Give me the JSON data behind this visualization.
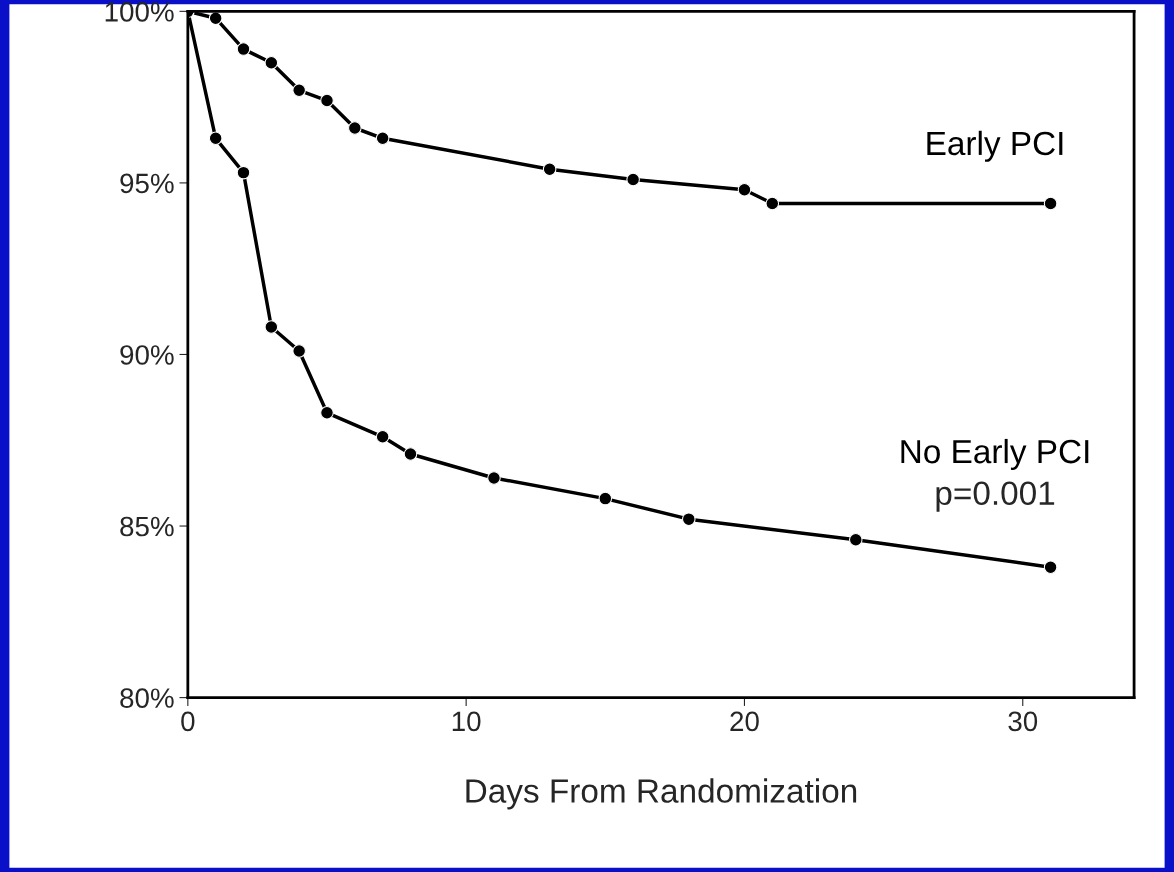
{
  "chart_data": {
    "type": "line",
    "xlabel": "Days From Randomization",
    "series": [
      {
        "name": "Early PCI",
        "color": "#000000",
        "x": [
          0,
          1,
          2,
          3,
          4,
          5,
          6,
          7,
          13,
          16,
          20,
          21,
          31
        ],
        "values": [
          100,
          99.8,
          98.9,
          98.5,
          97.7,
          97.4,
          96.6,
          96.3,
          95.4,
          95.1,
          94.8,
          94.4,
          94.4
        ]
      },
      {
        "name": "No Early PCI",
        "color": "#000000",
        "x": [
          0,
          1,
          2,
          3,
          4,
          5,
          7,
          8,
          11,
          15,
          18,
          24,
          31
        ],
        "values": [
          100,
          96.3,
          95.3,
          90.8,
          90.1,
          88.3,
          87.6,
          87.1,
          86.4,
          85.8,
          85.2,
          84.6,
          83.8
        ]
      }
    ],
    "annotations": [
      "p=0.001"
    ],
    "xlim": [
      0,
      34
    ],
    "xticks": [
      0,
      10,
      20,
      30
    ],
    "ylim": [
      80,
      100
    ],
    "yticks": [
      {
        "value": 80,
        "label": "80%"
      },
      {
        "value": 85,
        "label": "85%"
      },
      {
        "value": 90,
        "label": "90%"
      },
      {
        "value": 95,
        "label": "95%"
      },
      {
        "value": 100,
        "label": "100%"
      }
    ],
    "marker": "circle",
    "line_style": "solid",
    "grid": false,
    "legend": false
  }
}
